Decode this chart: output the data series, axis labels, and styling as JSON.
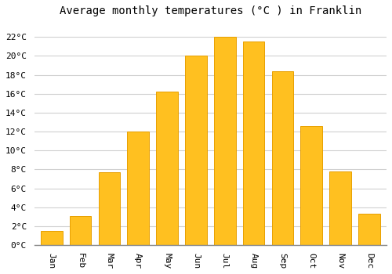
{
  "title": "Average monthly temperatures (°C ) in Franklin",
  "months": [
    "Jan",
    "Feb",
    "Mar",
    "Apr",
    "May",
    "Jun",
    "Jul",
    "Aug",
    "Sep",
    "Oct",
    "Nov",
    "Dec"
  ],
  "values": [
    1.5,
    3.1,
    7.7,
    12.0,
    16.2,
    20.0,
    22.0,
    21.5,
    18.4,
    12.6,
    7.8,
    3.3
  ],
  "bar_color": "#FFC020",
  "bar_edge_color": "#E8A000",
  "background_color": "#FFFFFF",
  "grid_color": "#D0D0D0",
  "ytick_labels": [
    "0°C",
    "2°C",
    "4°C",
    "6°C",
    "8°C",
    "10°C",
    "12°C",
    "14°C",
    "16°C",
    "18°C",
    "20°C",
    "22°C"
  ],
  "ytick_values": [
    0,
    2,
    4,
    6,
    8,
    10,
    12,
    14,
    16,
    18,
    20,
    22
  ],
  "ylim": [
    0,
    23.5
  ],
  "title_fontsize": 10,
  "tick_fontsize": 8,
  "bar_width": 0.75
}
